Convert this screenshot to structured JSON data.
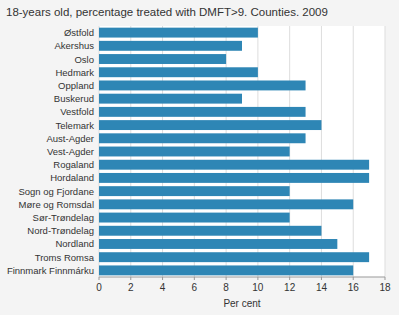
{
  "chart_data": {
    "type": "bar",
    "orientation": "horizontal",
    "title": "18-years old, percentage treated with DMFT>9. Counties. 2009",
    "categories": [
      "Østfold",
      "Akershus",
      "Oslo",
      "Hedmark",
      "Oppland",
      "Buskerud",
      "Vestfold",
      "Telemark",
      "Aust-Agder",
      "Vest-Agder",
      "Rogaland",
      "Hordaland",
      "Sogn og Fjordane",
      "Møre og Romsdal",
      "Sør-Trøndelag",
      "Nord-Trøndelag",
      "Nordland",
      "Troms Romsa",
      "Finnmark Finnmárku"
    ],
    "values": [
      10.0,
      9.0,
      8.0,
      10.0,
      13.0,
      9.0,
      13.0,
      14.0,
      13.0,
      12.0,
      17.0,
      17.0,
      12.0,
      16.0,
      12.0,
      14.0,
      15.0,
      17.0,
      16.0
    ],
    "color": "#2e86b5",
    "xlabel": "Per cent",
    "xlim": [
      0,
      18
    ],
    "xticks": [
      0,
      2,
      4,
      6,
      8,
      10,
      12,
      14,
      16,
      18
    ],
    "grid": true
  }
}
